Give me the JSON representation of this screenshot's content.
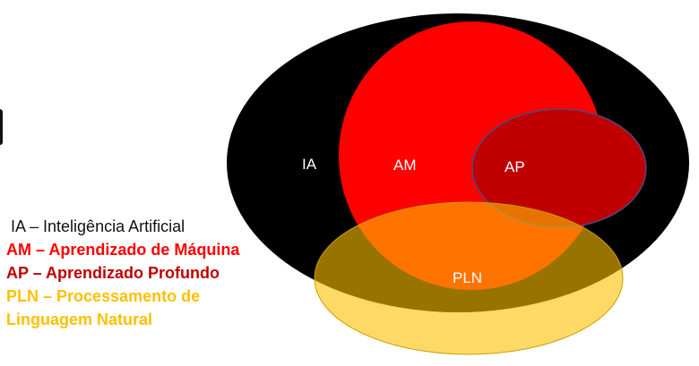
{
  "colors": {
    "ia": "#000000",
    "am": "#ff0000",
    "ap": "#c00000",
    "pln": "#ffc000",
    "pln_overlay": "rgba(255,192,0,0.6)",
    "ap_stroke": "#4a4a7a",
    "label_text": "#ffffff"
  },
  "diagram": {
    "labels": {
      "ia": "IA",
      "am": "AM",
      "ap": "AP",
      "pln": "PLN"
    }
  },
  "legend": {
    "ia": "IA – Inteligência Artificial",
    "am": "AM – Aprendizado de Máquina",
    "ap": "AP – Aprendizado Profundo",
    "pln_line1": "PLN – Processamento de",
    "pln_line2": "Linguagem Natural"
  }
}
